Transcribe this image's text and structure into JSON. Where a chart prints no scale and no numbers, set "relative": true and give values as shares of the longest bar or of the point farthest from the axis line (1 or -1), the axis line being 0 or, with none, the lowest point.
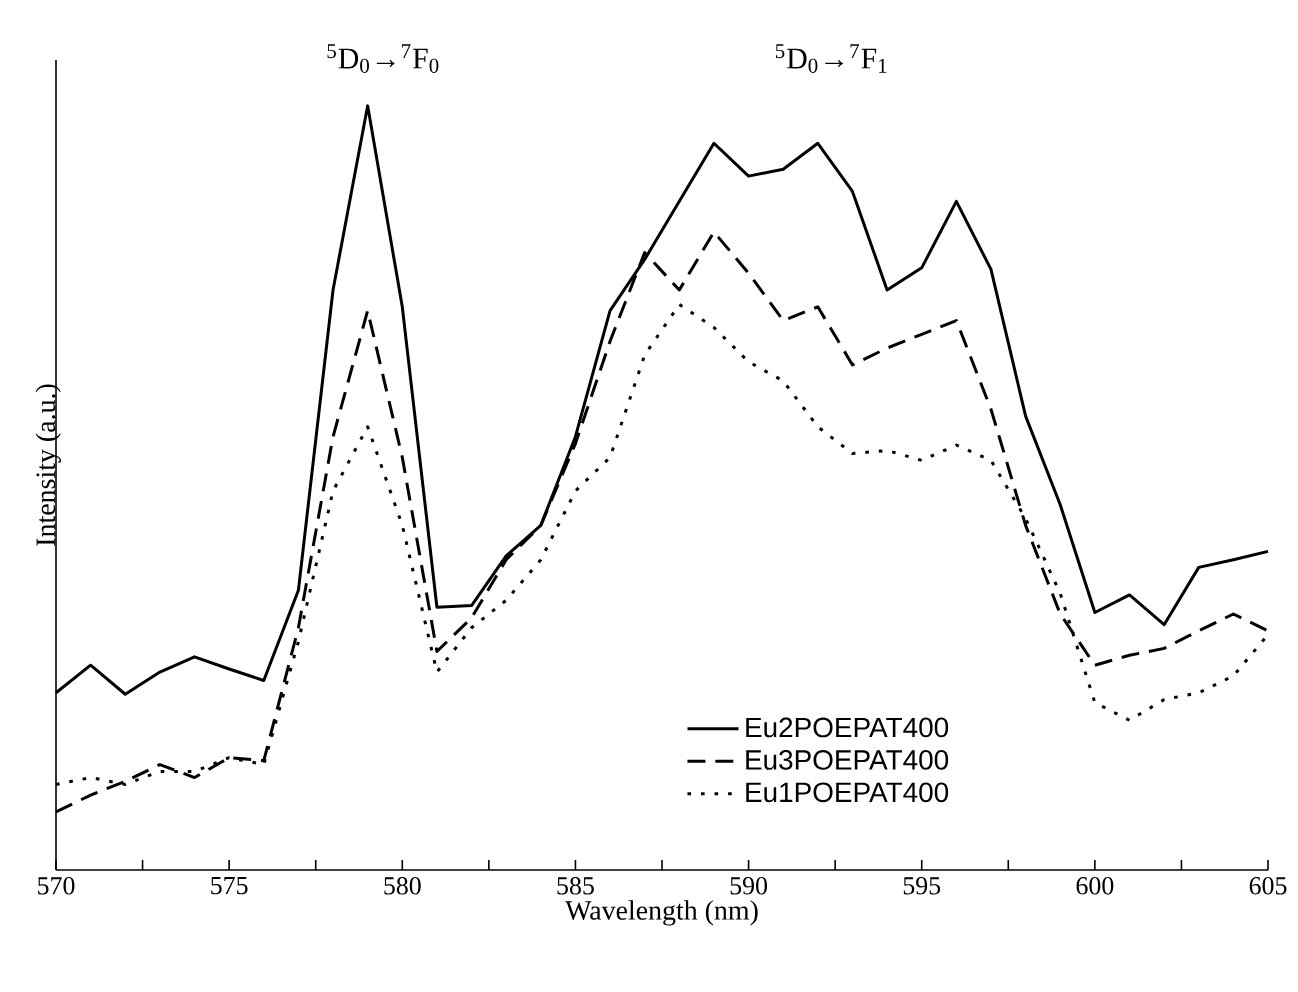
{
  "chart_data": {
    "type": "line",
    "relative": true,
    "xlabel": "Wavelength (nm)",
    "ylabel": "Intensity (a.u.)",
    "x": [
      570,
      571,
      572,
      573,
      574,
      575,
      576,
      577,
      578,
      579,
      580,
      581,
      582,
      583,
      584,
      585,
      586,
      587,
      588,
      589,
      590,
      591,
      592,
      593,
      594,
      595,
      596,
      597,
      598,
      599,
      600,
      601,
      602,
      603,
      604,
      605
    ],
    "xlim": [
      570,
      605
    ],
    "xticks": [
      570,
      {
        "value": 572.5,
        "label": null
      },
      575,
      {
        "value": 577.5,
        "label": null
      },
      580,
      {
        "value": 582.5,
        "label": null
      },
      585,
      {
        "value": 587.5,
        "label": null
      },
      590,
      {
        "value": 592.5,
        "label": null
      },
      595,
      {
        "value": 597.5,
        "label": null
      },
      600,
      {
        "value": 602.5,
        "label": null
      },
      605
    ],
    "legend": "bottom",
    "grid": false,
    "marker": "none",
    "annotations": [
      "$^{5}$D$_{0}$→$^{7}$F$_{0}$",
      "$^{5}$D$_{0}$→$^{7}$F$_{1}$"
    ],
    "series": [
      {
        "name": "Eu2POEPAT400",
        "color": "#000000",
        "line_style": "solid",
        "values": [
          0.232,
          0.268,
          0.23,
          0.259,
          0.279,
          0.263,
          0.248,
          0.366,
          0.759,
          1.0,
          0.737,
          0.344,
          0.346,
          0.411,
          0.451,
          0.567,
          0.732,
          0.799,
          0.875,
          0.951,
          0.908,
          0.917,
          0.951,
          0.888,
          0.759,
          0.788,
          0.875,
          0.786,
          0.594,
          0.478,
          0.337,
          0.36,
          0.321,
          0.396,
          0.406,
          0.417
        ]
      },
      {
        "name": "Eu3POEPAT400",
        "color": "#000000",
        "line_style": "dashed",
        "values": [
          0.076,
          0.098,
          0.116,
          0.138,
          0.121,
          0.147,
          0.143,
          0.317,
          0.567,
          0.732,
          0.54,
          0.286,
          0.33,
          0.406,
          0.451,
          0.558,
          0.692,
          0.808,
          0.759,
          0.835,
          0.781,
          0.719,
          0.737,
          0.661,
          0.683,
          0.701,
          0.719,
          0.603,
          0.451,
          0.335,
          0.268,
          0.281,
          0.29,
          0.313,
          0.335,
          0.313
        ]
      },
      {
        "name": "Eu1POEPAT400",
        "color": "#000000",
        "line_style": "dotted",
        "values": [
          0.112,
          0.121,
          0.112,
          0.129,
          0.129,
          0.147,
          0.138,
          0.299,
          0.496,
          0.58,
          0.451,
          0.259,
          0.317,
          0.353,
          0.406,
          0.496,
          0.54,
          0.674,
          0.74,
          0.71,
          0.665,
          0.64,
          0.58,
          0.545,
          0.549,
          0.536,
          0.556,
          0.536,
          0.46,
          0.362,
          0.219,
          0.196,
          0.223,
          0.232,
          0.254,
          0.308
        ]
      }
    ]
  }
}
